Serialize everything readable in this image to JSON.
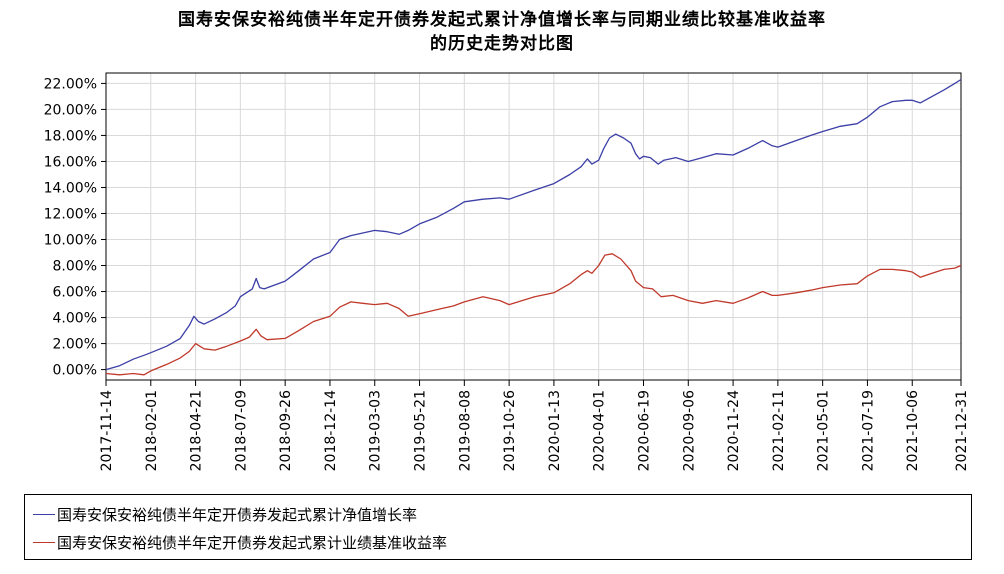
{
  "chart_data": {
    "type": "line",
    "title": "国寿安保安裕纯债半年定开债券发起式累计净值增长率与同期业绩比较基准收益率的历史走势对比图",
    "title_lines": [
      "国寿安保安裕纯债半年定开债券发起式累计净值增长率与同期业绩比较基准收益率",
      "的历史走势对比图"
    ],
    "xlabel": "",
    "ylabel": "",
    "x_type": "date",
    "x_range": [
      "2017-11-14",
      "2021-12-31"
    ],
    "x_ticks": [
      "2017-11-14",
      "2018-02-01",
      "2018-04-21",
      "2018-07-09",
      "2018-09-26",
      "2018-12-14",
      "2019-03-03",
      "2019-05-21",
      "2019-08-08",
      "2019-10-26",
      "2020-01-13",
      "2020-04-01",
      "2020-06-19",
      "2020-09-06",
      "2020-11-24",
      "2021-02-11",
      "2021-05-01",
      "2021-07-19",
      "2021-10-06",
      "2021-12-31"
    ],
    "y_unit": "%",
    "ylim": [
      -0.8,
      22.8
    ],
    "y_ticks": [
      0,
      2,
      4,
      6,
      8,
      10,
      12,
      14,
      16,
      18,
      20,
      22
    ],
    "y_tick_labels": [
      "0.00%",
      "2.00%",
      "4.00%",
      "6.00%",
      "8.00%",
      "10.00%",
      "12.00%",
      "14.00%",
      "16.00%",
      "18.00%",
      "20.00%",
      "22.00%"
    ],
    "grid": true,
    "legend_position": "bottom",
    "series": [
      {
        "name": "国寿安保安裕纯债半年定开债券发起式累计净值增长率",
        "color": "#3b3fa6",
        "points": [
          [
            "2017-11-14",
            0.0
          ],
          [
            "2017-12-08",
            0.3
          ],
          [
            "2018-01-01",
            0.8
          ],
          [
            "2018-01-20",
            1.1
          ],
          [
            "2018-02-01",
            1.3
          ],
          [
            "2018-03-01",
            1.8
          ],
          [
            "2018-03-25",
            2.4
          ],
          [
            "2018-04-10",
            3.4
          ],
          [
            "2018-04-18",
            4.1
          ],
          [
            "2018-04-26",
            3.7
          ],
          [
            "2018-05-06",
            3.5
          ],
          [
            "2018-05-25",
            3.9
          ],
          [
            "2018-06-15",
            4.4
          ],
          [
            "2018-06-30",
            4.9
          ],
          [
            "2018-07-09",
            5.6
          ],
          [
            "2018-07-30",
            6.2
          ],
          [
            "2018-08-06",
            7.0
          ],
          [
            "2018-08-12",
            6.3
          ],
          [
            "2018-08-20",
            6.2
          ],
          [
            "2018-09-26",
            6.8
          ],
          [
            "2018-10-20",
            7.6
          ],
          [
            "2018-11-15",
            8.5
          ],
          [
            "2018-12-14",
            9.0
          ],
          [
            "2018-12-31",
            10.0
          ],
          [
            "2019-01-20",
            10.3
          ],
          [
            "2019-02-10",
            10.5
          ],
          [
            "2019-03-03",
            10.7
          ],
          [
            "2019-03-25",
            10.6
          ],
          [
            "2019-04-15",
            10.4
          ],
          [
            "2019-05-01",
            10.7
          ],
          [
            "2019-05-21",
            11.2
          ],
          [
            "2019-06-20",
            11.7
          ],
          [
            "2019-07-20",
            12.4
          ],
          [
            "2019-08-08",
            12.9
          ],
          [
            "2019-09-10",
            13.1
          ],
          [
            "2019-10-10",
            13.2
          ],
          [
            "2019-10-26",
            13.1
          ],
          [
            "2019-12-10",
            13.8
          ],
          [
            "2020-01-13",
            14.3
          ],
          [
            "2020-02-10",
            15.0
          ],
          [
            "2020-03-01",
            15.6
          ],
          [
            "2020-03-12",
            16.2
          ],
          [
            "2020-03-20",
            15.8
          ],
          [
            "2020-04-01",
            16.1
          ],
          [
            "2020-04-10",
            17.0
          ],
          [
            "2020-04-20",
            17.8
          ],
          [
            "2020-05-01",
            18.1
          ],
          [
            "2020-05-15",
            17.8
          ],
          [
            "2020-05-28",
            17.4
          ],
          [
            "2020-06-05",
            16.6
          ],
          [
            "2020-06-12",
            16.2
          ],
          [
            "2020-06-19",
            16.4
          ],
          [
            "2020-07-01",
            16.3
          ],
          [
            "2020-07-15",
            15.8
          ],
          [
            "2020-07-25",
            16.1
          ],
          [
            "2020-08-15",
            16.3
          ],
          [
            "2020-09-06",
            16.0
          ],
          [
            "2020-10-01",
            16.3
          ],
          [
            "2020-10-25",
            16.6
          ],
          [
            "2020-11-24",
            16.5
          ],
          [
            "2020-12-20",
            17.0
          ],
          [
            "2021-01-15",
            17.6
          ],
          [
            "2021-02-01",
            17.2
          ],
          [
            "2021-02-11",
            17.1
          ],
          [
            "2021-03-15",
            17.6
          ],
          [
            "2021-04-10",
            18.0
          ],
          [
            "2021-05-01",
            18.3
          ],
          [
            "2021-06-01",
            18.7
          ],
          [
            "2021-07-01",
            18.9
          ],
          [
            "2021-07-19",
            19.4
          ],
          [
            "2021-08-10",
            20.2
          ],
          [
            "2021-09-01",
            20.6
          ],
          [
            "2021-09-25",
            20.7
          ],
          [
            "2021-10-06",
            20.7
          ],
          [
            "2021-10-20",
            20.5
          ],
          [
            "2021-11-10",
            21.0
          ],
          [
            "2021-12-01",
            21.5
          ],
          [
            "2021-12-20",
            22.0
          ],
          [
            "2021-12-31",
            22.3
          ]
        ]
      },
      {
        "name": "国寿安保安裕纯债半年定开债券发起式累计业绩基准收益率",
        "color": "#c0392b",
        "points": [
          [
            "2017-11-14",
            -0.3
          ],
          [
            "2017-12-08",
            -0.4
          ],
          [
            "2018-01-01",
            -0.3
          ],
          [
            "2018-01-20",
            -0.4
          ],
          [
            "2018-02-01",
            -0.1
          ],
          [
            "2018-03-01",
            0.4
          ],
          [
            "2018-03-25",
            0.9
          ],
          [
            "2018-04-10",
            1.4
          ],
          [
            "2018-04-21",
            2.0
          ],
          [
            "2018-05-06",
            1.6
          ],
          [
            "2018-05-25",
            1.5
          ],
          [
            "2018-06-15",
            1.8
          ],
          [
            "2018-07-09",
            2.2
          ],
          [
            "2018-07-25",
            2.5
          ],
          [
            "2018-08-06",
            3.1
          ],
          [
            "2018-08-14",
            2.6
          ],
          [
            "2018-08-25",
            2.3
          ],
          [
            "2018-09-26",
            2.4
          ],
          [
            "2018-10-20",
            3.0
          ],
          [
            "2018-11-15",
            3.7
          ],
          [
            "2018-12-14",
            4.1
          ],
          [
            "2018-12-31",
            4.8
          ],
          [
            "2019-01-20",
            5.2
          ],
          [
            "2019-02-10",
            5.1
          ],
          [
            "2019-03-03",
            5.0
          ],
          [
            "2019-03-25",
            5.1
          ],
          [
            "2019-04-15",
            4.7
          ],
          [
            "2019-05-01",
            4.1
          ],
          [
            "2019-05-21",
            4.3
          ],
          [
            "2019-06-20",
            4.6
          ],
          [
            "2019-07-20",
            4.9
          ],
          [
            "2019-08-08",
            5.2
          ],
          [
            "2019-09-10",
            5.6
          ],
          [
            "2019-10-10",
            5.3
          ],
          [
            "2019-10-26",
            5.0
          ],
          [
            "2019-12-10",
            5.6
          ],
          [
            "2020-01-13",
            5.9
          ],
          [
            "2020-02-10",
            6.6
          ],
          [
            "2020-03-01",
            7.3
          ],
          [
            "2020-03-12",
            7.6
          ],
          [
            "2020-03-20",
            7.4
          ],
          [
            "2020-04-01",
            8.0
          ],
          [
            "2020-04-12",
            8.8
          ],
          [
            "2020-04-25",
            8.9
          ],
          [
            "2020-05-10",
            8.5
          ],
          [
            "2020-05-28",
            7.6
          ],
          [
            "2020-06-05",
            6.8
          ],
          [
            "2020-06-19",
            6.3
          ],
          [
            "2020-07-05",
            6.2
          ],
          [
            "2020-07-20",
            5.6
          ],
          [
            "2020-08-10",
            5.7
          ],
          [
            "2020-09-06",
            5.3
          ],
          [
            "2020-10-01",
            5.1
          ],
          [
            "2020-10-25",
            5.3
          ],
          [
            "2020-11-24",
            5.1
          ],
          [
            "2020-12-20",
            5.5
          ],
          [
            "2021-01-15",
            6.0
          ],
          [
            "2021-02-01",
            5.7
          ],
          [
            "2021-02-11",
            5.7
          ],
          [
            "2021-03-15",
            5.9
          ],
          [
            "2021-04-10",
            6.1
          ],
          [
            "2021-05-01",
            6.3
          ],
          [
            "2021-06-01",
            6.5
          ],
          [
            "2021-07-01",
            6.6
          ],
          [
            "2021-07-19",
            7.2
          ],
          [
            "2021-08-10",
            7.7
          ],
          [
            "2021-09-01",
            7.7
          ],
          [
            "2021-09-25",
            7.6
          ],
          [
            "2021-10-06",
            7.5
          ],
          [
            "2021-10-20",
            7.1
          ],
          [
            "2021-11-10",
            7.4
          ],
          [
            "2021-12-01",
            7.7
          ],
          [
            "2021-12-20",
            7.8
          ],
          [
            "2021-12-31",
            8.0
          ]
        ]
      }
    ]
  }
}
